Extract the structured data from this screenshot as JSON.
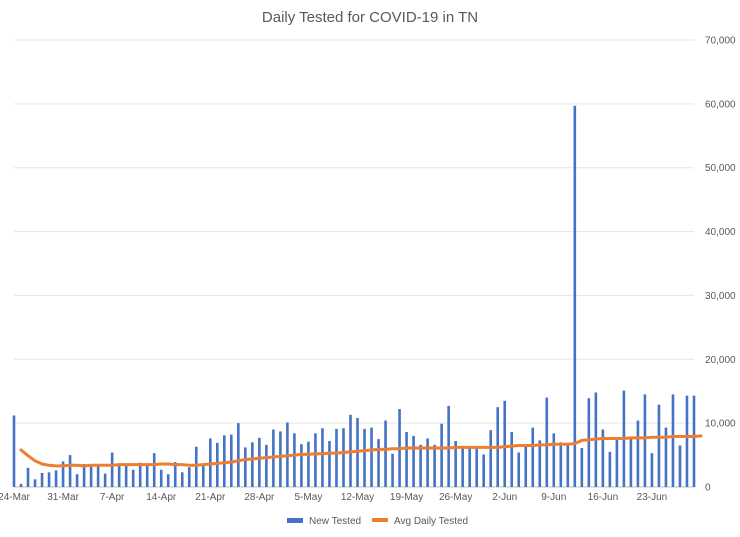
{
  "chart_data": {
    "type": "bar",
    "title": "Daily Tested for COVID-19 in TN",
    "xlabel": "",
    "ylabel": "",
    "ylim": [
      0,
      70000
    ],
    "y_ticks": [
      "0",
      "10,000",
      "20,000",
      "30,000",
      "40,000",
      "50,000",
      "60,000",
      "70,000"
    ],
    "y_tick_values": [
      0,
      10000,
      20000,
      30000,
      40000,
      50000,
      60000,
      70000
    ],
    "y_axis_side": "right",
    "grid": true,
    "legend_position": "bottom-center",
    "x_tick_labels": [
      "24-Mar",
      "31-Mar",
      "7-Apr",
      "14-Apr",
      "21-Apr",
      "28-Apr",
      "5-May",
      "12-May",
      "19-May",
      "26-May",
      "2-Jun",
      "9-Jun",
      "16-Jun",
      "23-Jun"
    ],
    "x_start": "24-Mar",
    "x_end": "29-Jun",
    "series": [
      {
        "name": "New Tested",
        "type": "bar",
        "color": "#4472c4",
        "values": [
          11200,
          500,
          3000,
          1200,
          2200,
          2300,
          2600,
          4000,
          5000,
          2000,
          3600,
          3300,
          3600,
          2100,
          5400,
          3500,
          3300,
          2700,
          3800,
          3700,
          5300,
          2700,
          2000,
          3900,
          2300,
          3100,
          6300,
          3300,
          7600,
          6900,
          8100,
          8200,
          10000,
          6200,
          7000,
          7700,
          6600,
          9000,
          8700,
          10100,
          8400,
          6700,
          7100,
          8400,
          9200,
          7200,
          9100,
          9200,
          11300,
          10800,
          9100,
          9300,
          7500,
          10400,
          5200,
          12200,
          8600,
          8000,
          6600,
          7600,
          6600,
          9900,
          12700,
          7200,
          6300,
          6100,
          6000,
          5100,
          8900,
          12500,
          13500,
          8600,
          5400,
          6600,
          9300,
          7300,
          14000,
          8400,
          7000,
          6500,
          59700,
          6100,
          13900,
          14800,
          9000,
          5500,
          7800,
          15100,
          7700,
          10400,
          14500,
          5300,
          12900,
          9300,
          14500,
          6500,
          14300,
          14300
        ]
      },
      {
        "name": "Avg Daily Tested",
        "type": "line",
        "color": "#ed7d31",
        "values": [
          5800,
          4900,
          4100,
          3600,
          3400,
          3300,
          3300,
          3400,
          3400,
          3300,
          3400,
          3400,
          3400,
          3400,
          3500,
          3500,
          3500,
          3500,
          3500,
          3500,
          3600,
          3600,
          3500,
          3500,
          3400,
          3400,
          3500,
          3600,
          3700,
          3800,
          3900,
          4100,
          4300,
          4400,
          4500,
          4600,
          4700,
          4800,
          4900,
          5000,
          5100,
          5100,
          5200,
          5200,
          5300,
          5300,
          5400,
          5500,
          5600,
          5700,
          5800,
          5900,
          5900,
          6000,
          6000,
          6100,
          6100,
          6100,
          6100,
          6100,
          6100,
          6100,
          6200,
          6200,
          6200,
          6200,
          6200,
          6200,
          6200,
          6300,
          6400,
          6500,
          6500,
          6500,
          6600,
          6600,
          6700,
          6700,
          6700,
          6800,
          7300,
          7400,
          7500,
          7600,
          7600,
          7600,
          7600,
          7700,
          7700,
          7700,
          7800,
          7800,
          7800,
          7900,
          7900,
          7900,
          7900,
          8000
        ]
      }
    ]
  }
}
